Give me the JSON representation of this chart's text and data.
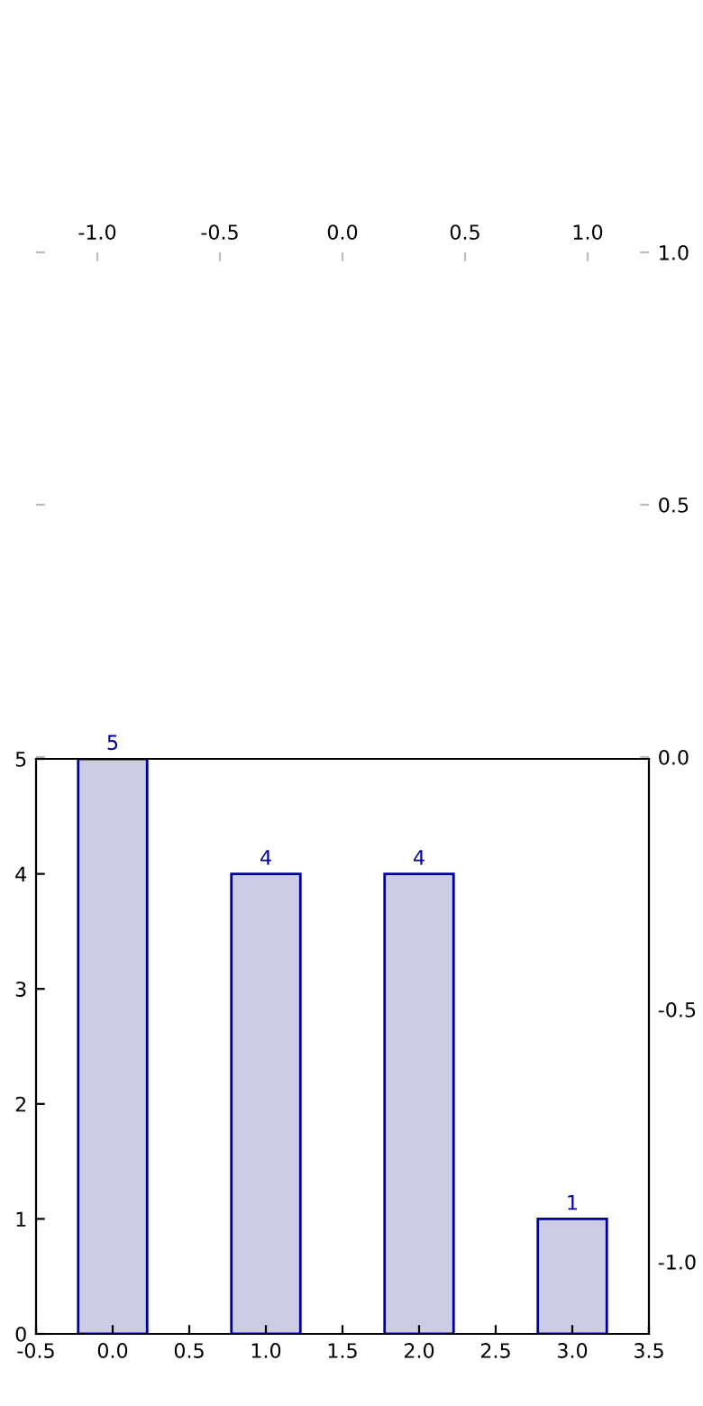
{
  "chart_data": [
    {
      "type": "line",
      "xlim": [
        -1.25,
        1.25
      ],
      "ylim": [
        -1.0,
        1.0
      ],
      "xticks": [
        {
          "value": -1.0,
          "label": "-1.0"
        },
        {
          "value": -0.5,
          "label": "-0.5"
        },
        {
          "value": 0.0,
          "label": "0.0"
        },
        {
          "value": 0.5,
          "label": "0.5"
        },
        {
          "value": 1.0,
          "label": "1.0"
        }
      ],
      "yticks": [
        {
          "value": -1.0,
          "label": "-1.0"
        },
        {
          "value": -0.5,
          "label": "-0.5"
        },
        {
          "value": 0.0,
          "label": "0.0"
        },
        {
          "value": 0.5,
          "label": "0.5"
        },
        {
          "value": 1.0,
          "label": "1.0"
        }
      ]
    },
    {
      "type": "bar",
      "x": [
        0,
        1,
        2,
        3
      ],
      "values": [
        5,
        4,
        4,
        1
      ],
      "color": "#ccccE6",
      "xlim": [
        -0.5,
        3.5
      ],
      "ylim": [
        0,
        5
      ],
      "xticks": [
        -0.5,
        {
          "value": 0,
          "label": "0.0"
        },
        0.5,
        {
          "value": 1,
          "label": "1.0"
        },
        1.5,
        {
          "value": 2,
          "label": "2.0"
        },
        2.5,
        {
          "value": 3,
          "label": "3.0"
        },
        3.5
      ],
      "yticks": [
        0,
        1,
        2,
        3,
        4,
        5
      ],
      "data_labels": true
    }
  ]
}
